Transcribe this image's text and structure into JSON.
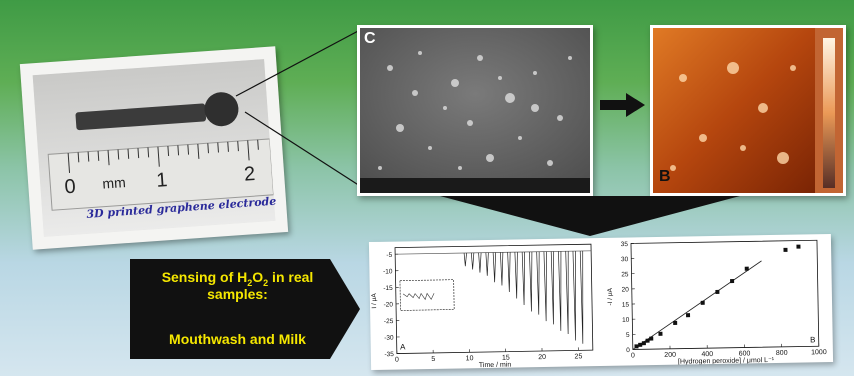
{
  "photo": {
    "caption": "3D printed graphene electrode",
    "ruler_zero": "0",
    "ruler_unit": "mm",
    "ruler_one": "1",
    "ruler_two": "2"
  },
  "sem": {
    "panel_label": "C"
  },
  "afm": {
    "panel_label": "B"
  },
  "callout": {
    "line1": "Sensing of H",
    "line1_sub": "2",
    "line1_o": "O",
    "line1_sub2": "2",
    "line1_rest": " in real",
    "line2": "samples:",
    "line3": "Mouthwash and Milk"
  },
  "colors": {
    "callout_bg": "#111111",
    "callout_text": "#f5e700",
    "arrow": "#111111"
  },
  "chart_data": [
    {
      "type": "line",
      "panel_label": "A",
      "xlabel": "Time / min",
      "ylabel": "I / μA",
      "x_ticks": [
        "0",
        "5",
        "10",
        "15",
        "20",
        "25"
      ],
      "y_ticks": [
        "-5",
        "-10",
        "-15",
        "-20",
        "-25",
        "-30",
        "-35"
      ],
      "xlim": [
        0,
        27
      ],
      "ylim": [
        -35,
        -3
      ],
      "baseline": -5,
      "spikes": [
        {
          "x": 9.5,
          "y": -9
        },
        {
          "x": 10.5,
          "y": -10
        },
        {
          "x": 11.5,
          "y": -11
        },
        {
          "x": 12.5,
          "y": -12
        },
        {
          "x": 13.5,
          "y": -14
        },
        {
          "x": 14.5,
          "y": -15
        },
        {
          "x": 15.5,
          "y": -17
        },
        {
          "x": 16.5,
          "y": -19
        },
        {
          "x": 17.5,
          "y": -21
        },
        {
          "x": 18.5,
          "y": -23
        },
        {
          "x": 19.5,
          "y": -24
        },
        {
          "x": 20.5,
          "y": -26
        },
        {
          "x": 21.5,
          "y": -27
        },
        {
          "x": 22.5,
          "y": -29
        },
        {
          "x": 23.5,
          "y": -30
        },
        {
          "x": 24.5,
          "y": -32
        },
        {
          "x": 25.5,
          "y": -33
        }
      ]
    },
    {
      "type": "scatter",
      "panel_label": "B",
      "xlabel": "[Hydrogen peroxide] / μmol L⁻¹",
      "ylabel": "-I / μA",
      "x_ticks": [
        "0",
        "200",
        "400",
        "600",
        "800",
        "1000"
      ],
      "y_ticks": [
        "0",
        "5",
        "10",
        "15",
        "20",
        "25",
        "30",
        "35"
      ],
      "xlim": [
        0,
        1000
      ],
      "ylim": [
        0,
        35
      ],
      "points": [
        {
          "x": 20,
          "y": 1
        },
        {
          "x": 40,
          "y": 1.5
        },
        {
          "x": 60,
          "y": 2
        },
        {
          "x": 80,
          "y": 2.8
        },
        {
          "x": 100,
          "y": 3.5
        },
        {
          "x": 150,
          "y": 5
        },
        {
          "x": 230,
          "y": 8.5
        },
        {
          "x": 300,
          "y": 11
        },
        {
          "x": 380,
          "y": 15
        },
        {
          "x": 460,
          "y": 18.5
        },
        {
          "x": 540,
          "y": 22
        },
        {
          "x": 620,
          "y": 26
        },
        {
          "x": 830,
          "y": 32
        },
        {
          "x": 900,
          "y": 33
        }
      ],
      "fit_line": [
        {
          "x": 0,
          "y": 0
        },
        {
          "x": 700,
          "y": 28.5
        }
      ]
    }
  ]
}
